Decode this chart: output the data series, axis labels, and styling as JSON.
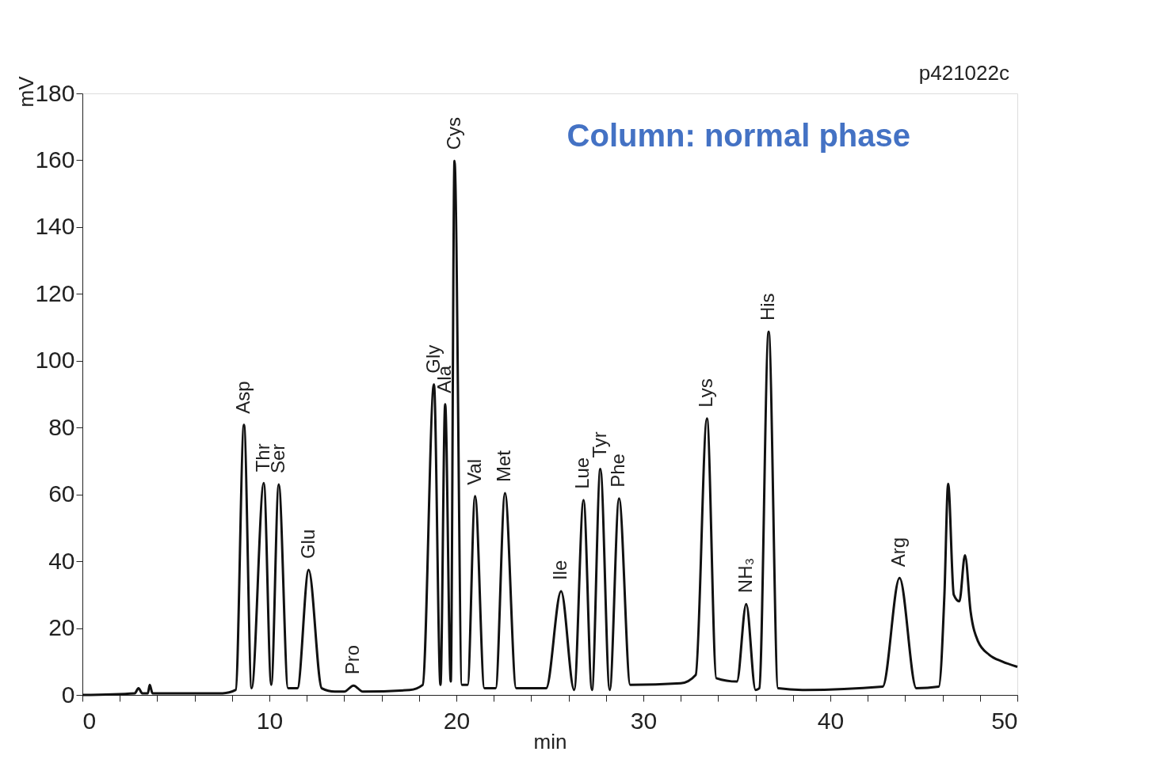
{
  "chart_data": {
    "type": "line",
    "xlabel": "min",
    "ylabel": "mV",
    "xlim": [
      0,
      50
    ],
    "ylim": [
      0,
      180
    ],
    "xticks": [
      0,
      {
        "value": 2,
        "label": null
      },
      {
        "value": 4,
        "label": null
      },
      {
        "value": 6,
        "label": null
      },
      {
        "value": 8,
        "label": null
      },
      10,
      {
        "value": 12,
        "label": null
      },
      {
        "value": 14,
        "label": null
      },
      {
        "value": 16,
        "label": null
      },
      {
        "value": 18,
        "label": null
      },
      20,
      {
        "value": 22,
        "label": null
      },
      {
        "value": 24,
        "label": null
      },
      {
        "value": 26,
        "label": null
      },
      {
        "value": 28,
        "label": null
      },
      30,
      {
        "value": 32,
        "label": null
      },
      {
        "value": 34,
        "label": null
      },
      {
        "value": 36,
        "label": null
      },
      {
        "value": 38,
        "label": null
      },
      40,
      {
        "value": 42,
        "label": null
      },
      {
        "value": 44,
        "label": null
      },
      {
        "value": 46,
        "label": null
      },
      {
        "value": 48,
        "label": null
      },
      50
    ],
    "yticks": [
      0,
      20,
      40,
      60,
      80,
      100,
      120,
      140,
      160,
      180
    ],
    "grid": false,
    "marker": "none",
    "line_style": "solid",
    "series": [
      {
        "color": "#111111",
        "x": [
          0,
          2.8,
          3.0,
          3.2,
          3.5,
          3.6,
          3.75,
          7.5,
          8.2,
          8.64,
          9.05,
          9.7,
          10.1,
          10.5,
          11.0,
          11.5,
          12.1,
          12.8,
          13.5,
          14.0,
          14.5,
          15.0,
          17.5,
          18.2,
          18.8,
          19.15,
          19.4,
          19.7,
          19.9,
          20.3,
          20.6,
          21.0,
          21.5,
          22.1,
          22.6,
          23.2,
          24.8,
          25.6,
          26.3,
          26.8,
          27.25,
          27.7,
          28.2,
          28.7,
          29.3,
          32.0,
          32.8,
          33.4,
          33.9,
          35.0,
          35.5,
          36.0,
          36.2,
          36.7,
          37.2,
          38.5,
          42.8,
          43.7,
          44.6,
          45.8,
          46.1,
          46.3,
          46.6,
          46.9,
          47.2,
          47.5,
          47.9,
          48.5,
          49.2,
          50
        ],
        "values": [
          0,
          0.5,
          2,
          0.5,
          0.5,
          3,
          0.5,
          0.5,
          1.5,
          80.8,
          2,
          63.4,
          3,
          63,
          2,
          2,
          37.4,
          2,
          1,
          1,
          2.8,
          1,
          1.5,
          3,
          92.9,
          3,
          87,
          4,
          159.8,
          3,
          3,
          59.5,
          2,
          2,
          60.4,
          2,
          2,
          31,
          1.5,
          58.3,
          1.5,
          67.6,
          1.5,
          58.8,
          3,
          3.5,
          6,
          82.7,
          5,
          4,
          27.2,
          1.5,
          2,
          108.7,
          2,
          1.5,
          2.5,
          35,
          2,
          2.5,
          30,
          63.2,
          30,
          28,
          41.8,
          25,
          16,
          12,
          10,
          8.4
        ]
      }
    ],
    "annotations": [
      "p421022c",
      "Column: normal phase",
      {
        "text": "Asp",
        "x": 8.64,
        "y": 80.8
      },
      {
        "text": "Thr",
        "x": 9.7,
        "y": 63.4
      },
      {
        "text": "Ser",
        "x": 10.5,
        "y": 63
      },
      {
        "text": "Glu",
        "x": 12.1,
        "y": 37.4
      },
      {
        "text": "Pro",
        "x": 14.5,
        "y": 2.8
      },
      {
        "text": "Gly",
        "x": 18.8,
        "y": 92.9
      },
      {
        "text": "Ala",
        "x": 19.4,
        "y": 87
      },
      {
        "text": "Cys",
        "x": 19.9,
        "y": 159.8
      },
      {
        "text": "Val",
        "x": 21.0,
        "y": 59.5
      },
      {
        "text": "Met",
        "x": 22.6,
        "y": 60.4
      },
      {
        "text": "Ile",
        "x": 25.6,
        "y": 31
      },
      {
        "text": "Lue",
        "x": 26.8,
        "y": 58.3
      },
      {
        "text": "Tyr",
        "x": 27.7,
        "y": 67.6
      },
      {
        "text": "Phe",
        "x": 28.7,
        "y": 58.8
      },
      {
        "text": "Lys",
        "x": 33.4,
        "y": 82.7
      },
      {
        "text": "NH₃",
        "x": 35.5,
        "y": 27.2
      },
      {
        "text": "His",
        "x": 36.7,
        "y": 108.7
      },
      {
        "text": "Arg",
        "x": 43.7,
        "y": 35
      }
    ]
  }
}
